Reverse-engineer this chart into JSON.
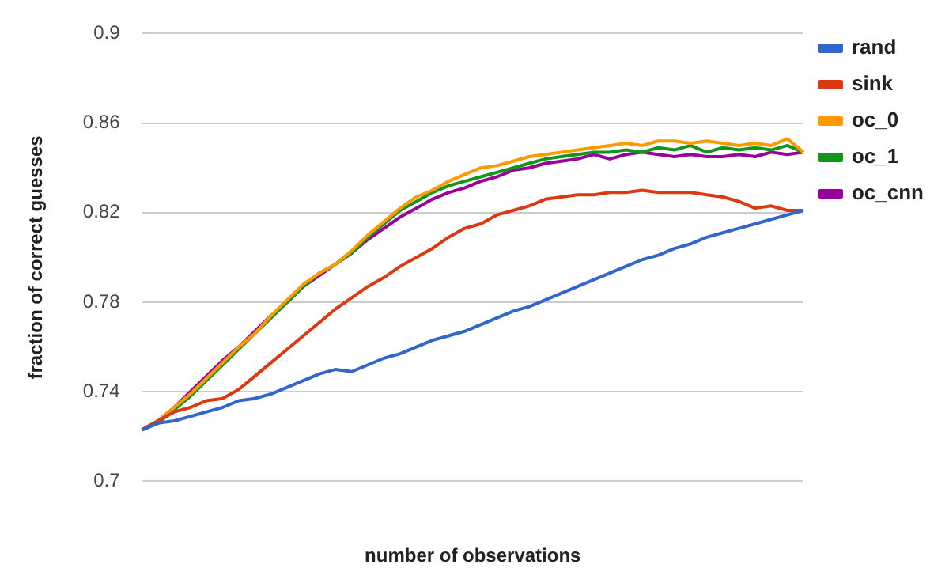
{
  "chart_data": {
    "type": "line",
    "xlabel": "number of observations",
    "ylabel": "fraction of correct guesses",
    "categories": [
      null,
      null,
      null,
      null,
      null,
      null,
      null,
      null,
      null,
      null,
      null,
      null,
      null,
      null,
      null,
      null,
      null,
      null,
      null,
      null,
      null,
      null,
      null,
      null,
      null,
      null,
      null,
      null,
      null,
      null,
      null,
      null,
      null,
      null,
      null,
      null,
      null,
      null,
      null,
      null,
      null,
      null
    ],
    "ylim": [
      0.7,
      0.9
    ],
    "yticks": [
      0.7,
      0.74,
      0.78,
      0.82,
      0.86,
      0.9
    ],
    "grid": "y",
    "legend": "right",
    "marker": "none",
    "line_style": "solid",
    "series": [
      {
        "name": "rand",
        "color": "#3366cc",
        "values": [
          0.723,
          0.726,
          0.727,
          0.729,
          0.731,
          0.733,
          0.736,
          0.737,
          0.739,
          0.742,
          0.745,
          0.748,
          0.75,
          0.749,
          0.752,
          0.755,
          0.757,
          0.76,
          0.763,
          0.765,
          0.767,
          0.77,
          0.773,
          0.776,
          0.778,
          0.781,
          0.784,
          0.787,
          0.79,
          0.793,
          0.796,
          0.799,
          0.801,
          0.804,
          0.806,
          0.809,
          0.811,
          0.813,
          0.815,
          0.817,
          0.819,
          0.821
        ]
      },
      {
        "name": "sink",
        "color": "#dc3912",
        "values": [
          0.723,
          0.727,
          0.731,
          0.733,
          0.736,
          0.737,
          0.741,
          0.747,
          0.753,
          0.759,
          0.765,
          0.771,
          0.777,
          0.782,
          0.787,
          0.791,
          0.796,
          0.8,
          0.804,
          0.809,
          0.813,
          0.815,
          0.819,
          0.821,
          0.823,
          0.826,
          0.827,
          0.828,
          0.828,
          0.829,
          0.829,
          0.83,
          0.829,
          0.829,
          0.829,
          0.828,
          0.827,
          0.825,
          0.822,
          0.823,
          0.821,
          0.821
        ]
      },
      {
        "name": "oc_0",
        "color": "#ff9900",
        "values": [
          0.723,
          0.727,
          0.733,
          0.739,
          0.746,
          0.753,
          0.76,
          0.766,
          0.774,
          0.781,
          0.788,
          0.793,
          0.797,
          0.803,
          0.81,
          0.816,
          0.822,
          0.827,
          0.83,
          0.834,
          0.837,
          0.84,
          0.841,
          0.843,
          0.845,
          0.846,
          0.847,
          0.848,
          0.849,
          0.85,
          0.851,
          0.85,
          0.852,
          0.852,
          0.851,
          0.852,
          0.851,
          0.85,
          0.851,
          0.85,
          0.853,
          0.847
        ]
      },
      {
        "name": "oc_1",
        "color": "#109618",
        "values": [
          0.723,
          0.726,
          0.732,
          0.738,
          0.745,
          0.752,
          0.759,
          0.766,
          0.773,
          0.78,
          0.787,
          0.793,
          0.797,
          0.802,
          0.809,
          0.815,
          0.821,
          0.825,
          0.829,
          0.832,
          0.834,
          0.836,
          0.838,
          0.84,
          0.842,
          0.844,
          0.845,
          0.846,
          0.847,
          0.847,
          0.848,
          0.847,
          0.849,
          0.848,
          0.85,
          0.847,
          0.849,
          0.848,
          0.849,
          0.848,
          0.85,
          0.847
        ]
      },
      {
        "name": "oc_cnn",
        "color": "#990099",
        "values": [
          0.723,
          0.727,
          0.733,
          0.74,
          0.747,
          0.754,
          0.76,
          0.767,
          0.774,
          0.78,
          0.787,
          0.792,
          0.797,
          0.802,
          0.808,
          0.813,
          0.818,
          0.822,
          0.826,
          0.829,
          0.831,
          0.834,
          0.836,
          0.839,
          0.84,
          0.842,
          0.843,
          0.844,
          0.846,
          0.844,
          0.846,
          0.847,
          0.846,
          0.845,
          0.846,
          0.845,
          0.845,
          0.846,
          0.845,
          0.847,
          0.846,
          0.847
        ]
      }
    ]
  }
}
